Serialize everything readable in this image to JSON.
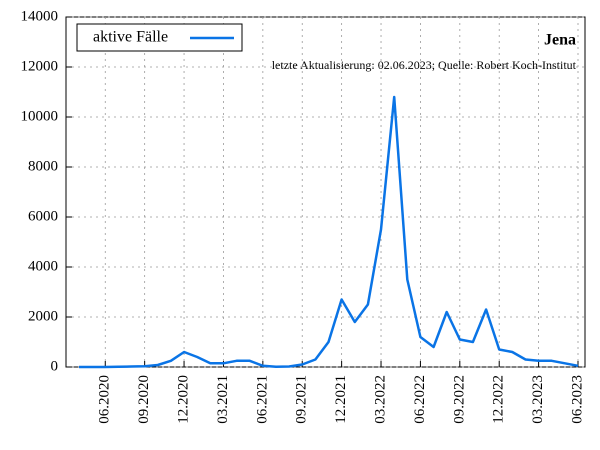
{
  "chart_data": {
    "type": "line",
    "title": "Jena",
    "subtitle": "letzte Aktualisierung: 02.06.2023; Quelle: Robert Koch-Institut",
    "x": [
      "2020-04",
      "2020-05",
      "2020-06",
      "2020-07",
      "2020-08",
      "2020-09",
      "2020-10",
      "2020-11",
      "2020-12",
      "2021-01",
      "2021-02",
      "2021-03",
      "2021-04",
      "2021-05",
      "2021-06",
      "2021-07",
      "2021-08",
      "2021-09",
      "2021-10",
      "2021-11",
      "2021-12",
      "2022-01",
      "2022-02",
      "2022-03",
      "2022-04",
      "2022-05",
      "2022-06",
      "2022-07",
      "2022-08",
      "2022-09",
      "2022-10",
      "2022-11",
      "2022-12",
      "2023-01",
      "2023-02",
      "2023-03",
      "2023-04",
      "2023-05",
      "2023-06"
    ],
    "series": [
      {
        "name": "aktive Fälle",
        "color": "#0a74e6",
        "values": [
          0,
          0,
          0,
          10,
          20,
          30,
          80,
          250,
          600,
          400,
          150,
          150,
          250,
          250,
          50,
          10,
          20,
          100,
          300,
          1000,
          2700,
          1800,
          2500,
          5500,
          10800,
          3500,
          1200,
          800,
          2200,
          1100,
          1000,
          2300,
          700,
          600,
          300,
          250,
          250,
          150,
          50
        ]
      }
    ],
    "xlim": [
      "2020-04",
      "2023-06"
    ],
    "xticks": [
      {
        "value": "2020-06",
        "label": "06.2020"
      },
      {
        "value": "2020-09",
        "label": "09.2020"
      },
      {
        "value": "2020-12",
        "label": "12.2020"
      },
      {
        "value": "2021-03",
        "label": "03.2021"
      },
      {
        "value": "2021-06",
        "label": "06.2021"
      },
      {
        "value": "2021-09",
        "label": "09.2021"
      },
      {
        "value": "2021-12",
        "label": "12.2021"
      },
      {
        "value": "2022-03",
        "label": "03.2022"
      },
      {
        "value": "2022-06",
        "label": "06.2022"
      },
      {
        "value": "2022-09",
        "label": "09.2022"
      },
      {
        "value": "2022-12",
        "label": "12.2022"
      },
      {
        "value": "2023-03",
        "label": "03.2023"
      },
      {
        "value": "2023-06",
        "label": "06.2023"
      }
    ],
    "ylim": [
      0,
      14000
    ],
    "yticks": [
      0,
      2000,
      4000,
      6000,
      8000,
      10000,
      12000,
      14000
    ],
    "grid": true,
    "legend": "upper left"
  }
}
